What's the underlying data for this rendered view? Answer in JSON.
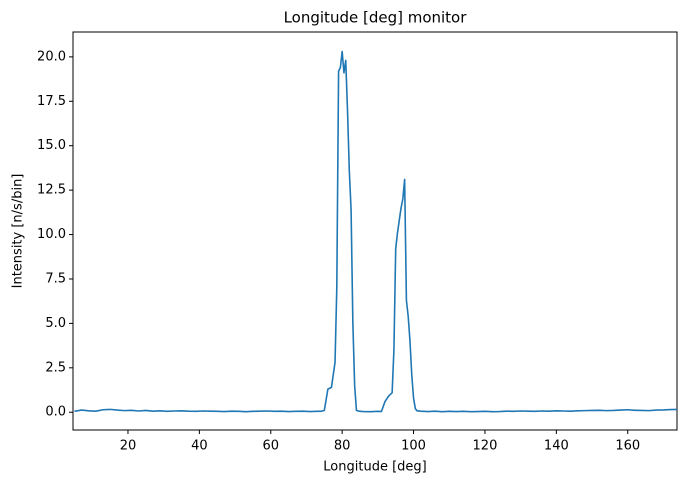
{
  "chart_data": {
    "type": "line",
    "title": "Longitude [deg] monitor",
    "x_label": "Longitude [deg]",
    "y_label": "Intensity [n/s/bin]",
    "x": [
      5,
      7,
      9,
      11,
      13,
      15,
      17,
      19,
      21,
      23,
      25,
      27,
      29,
      31,
      33,
      35,
      37,
      39,
      41,
      43,
      45,
      47,
      49,
      51,
      53,
      55,
      57,
      59,
      61,
      63,
      65,
      67,
      69,
      71,
      73,
      74,
      75,
      76,
      77,
      78,
      78.5,
      79,
      79.5,
      80,
      80.5,
      81,
      81.5,
      82,
      82.5,
      83,
      83.5,
      84,
      85,
      86,
      88,
      90,
      91,
      92,
      93,
      94,
      94.5,
      95,
      95.5,
      96,
      96.5,
      97,
      97.5,
      98,
      98.5,
      99,
      99.5,
      100,
      100.5,
      101,
      102,
      104,
      106,
      108,
      110,
      112,
      114,
      116,
      118,
      120,
      122,
      124,
      126,
      128,
      130,
      132,
      134,
      136,
      138,
      140,
      142,
      144,
      146,
      148,
      150,
      152,
      154,
      156,
      158,
      160,
      162,
      164,
      166,
      168,
      170,
      172,
      174
    ],
    "series": [
      {
        "name": "Longitude",
        "color": "#1f77b4",
        "values": [
          0.05,
          0.12,
          0.08,
          0.06,
          0.14,
          0.16,
          0.12,
          0.09,
          0.11,
          0.07,
          0.1,
          0.06,
          0.08,
          0.05,
          0.07,
          0.08,
          0.06,
          0.05,
          0.07,
          0.06,
          0.05,
          0.04,
          0.06,
          0.05,
          0.03,
          0.05,
          0.06,
          0.07,
          0.05,
          0.06,
          0.04,
          0.05,
          0.06,
          0.04,
          0.05,
          0.05,
          0.1,
          1.3,
          1.4,
          2.8,
          7.0,
          19.2,
          19.4,
          20.3,
          19.1,
          19.8,
          17.0,
          13.6,
          11.4,
          5.0,
          1.5,
          0.1,
          0.05,
          0.04,
          0.03,
          0.05,
          0.04,
          0.6,
          0.9,
          1.1,
          3.5,
          9.2,
          10.1,
          10.8,
          11.5,
          12.0,
          13.1,
          6.3,
          5.4,
          4.0,
          2.1,
          0.8,
          0.2,
          0.08,
          0.06,
          0.04,
          0.06,
          0.03,
          0.05,
          0.04,
          0.05,
          0.03,
          0.04,
          0.05,
          0.03,
          0.04,
          0.06,
          0.05,
          0.07,
          0.06,
          0.05,
          0.07,
          0.06,
          0.08,
          0.07,
          0.06,
          0.08,
          0.09,
          0.1,
          0.11,
          0.09,
          0.1,
          0.12,
          0.14,
          0.11,
          0.1,
          0.09,
          0.12,
          0.13,
          0.15,
          0.16
        ]
      }
    ],
    "xlim": [
      4.6,
      173.8
    ],
    "ylim": [
      -1.0,
      21.4
    ],
    "xticks": [
      20,
      40,
      60,
      80,
      100,
      120,
      140,
      160
    ],
    "yticks": [
      {
        "value": 0,
        "label": "0.0"
      },
      2.5,
      {
        "value": 5,
        "label": "5.0"
      },
      7.5,
      {
        "value": 10,
        "label": "10.0"
      },
      12.5,
      {
        "value": 15,
        "label": "15.0"
      },
      17.5,
      {
        "value": 20,
        "label": "20.0"
      }
    ],
    "grid": false
  }
}
